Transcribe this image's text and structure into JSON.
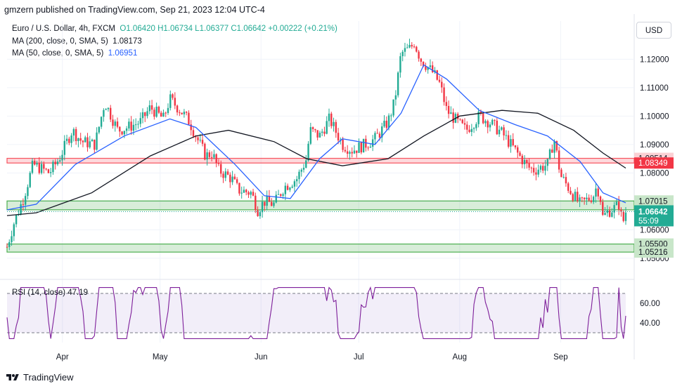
{
  "publisher": "gmzern published on TradingView.com, Sep 21, 2023 12:04 UTC-4",
  "legend": {
    "title": "Euro / U.S. Dollar, 4h, FXCM",
    "ohlc": "O1.06420  H1.06734  L1.06377  C1.06642  +0.00222 (+0.21%)",
    "ma200_label": "MA (200, close, 0, SMA, 5)",
    "ma200_value": "1.08173",
    "ma50_label": "MA (50, close, 0, SMA, 5)",
    "ma50_value": "1.06951"
  },
  "currency_button": "USD",
  "rsi_label": "RSI (14, close)  47.19",
  "footer_brand": "TradingView",
  "colors": {
    "bull": "#22ab94",
    "bear": "#f23645",
    "ma50": "#2962ff",
    "ma200": "#131722",
    "rsi": "#7e1f9a",
    "resistance_zone": "#f7525f",
    "support_zone": "#4caf50"
  },
  "chart_data": [
    {
      "type": "candlestick",
      "symbol": "EURUSD",
      "interval": "4h",
      "x_range": [
        "2023-03-15",
        "2023-09-21"
      ],
      "x_ticks": [
        "Apr",
        "May",
        "Jun",
        "Jul",
        "Aug",
        "Sep"
      ],
      "y_ticks": [
        1.12,
        1.11,
        1.1,
        1.09,
        1.08,
        1.07,
        1.06,
        1.05
      ],
      "ylim": [
        1.0475,
        1.1265
      ],
      "scale_labels": {
        "resistance_top": "1.08514",
        "resistance_bottom": "1.08349",
        "support_top": "1.07015",
        "support_bottom": "1.06703",
        "current_price": "1.06642",
        "countdown": "55:09",
        "lower_top": "1.05500",
        "lower_bottom": "1.05216"
      },
      "zones": [
        {
          "name": "resistance",
          "from": 1.08349,
          "to": 1.08514
        },
        {
          "name": "support",
          "from": 1.06703,
          "to": 1.07015
        },
        {
          "name": "lower support",
          "from": 1.05216,
          "to": 1.055
        }
      ],
      "close_path": [
        [
          "2023-03-15",
          1.054
        ],
        [
          "2023-03-17",
          1.062
        ],
        [
          "2023-03-20",
          1.071
        ],
        [
          "2023-03-23",
          1.083
        ],
        [
          "2023-03-28",
          1.08
        ],
        [
          "2023-03-31",
          1.085
        ],
        [
          "2023-04-04",
          1.095
        ],
        [
          "2023-04-07",
          1.091
        ],
        [
          "2023-04-11",
          1.09
        ],
        [
          "2023-04-14",
          1.105
        ],
        [
          "2023-04-18",
          1.095
        ],
        [
          "2023-04-21",
          1.096
        ],
        [
          "2023-04-25",
          1.098
        ],
        [
          "2023-04-28",
          1.103
        ],
        [
          "2023-05-02",
          1.099
        ],
        [
          "2023-05-04",
          1.106
        ],
        [
          "2023-05-08",
          1.101
        ],
        [
          "2023-05-10",
          1.098
        ],
        [
          "2023-05-12",
          1.093
        ],
        [
          "2023-05-15",
          1.086
        ],
        [
          "2023-05-17",
          1.087
        ],
        [
          "2023-05-19",
          1.081
        ],
        [
          "2023-05-23",
          1.078
        ],
        [
          "2023-05-25",
          1.074
        ],
        [
          "2023-05-29",
          1.073
        ],
        [
          "2023-05-31",
          1.067
        ],
        [
          "2023-06-02",
          1.07
        ],
        [
          "2023-06-05",
          1.069
        ],
        [
          "2023-06-08",
          1.075
        ],
        [
          "2023-06-12",
          1.078
        ],
        [
          "2023-06-15",
          1.085
        ],
        [
          "2023-06-16",
          1.095
        ],
        [
          "2023-06-19",
          1.093
        ],
        [
          "2023-06-22",
          1.099
        ],
        [
          "2023-06-26",
          1.09
        ],
        [
          "2023-06-29",
          1.088
        ],
        [
          "2023-07-03",
          1.09
        ],
        [
          "2023-07-06",
          1.092
        ],
        [
          "2023-07-10",
          1.098
        ],
        [
          "2023-07-12",
          1.105
        ],
        [
          "2023-07-14",
          1.122
        ],
        [
          "2023-07-17",
          1.124
        ],
        [
          "2023-07-18",
          1.126
        ],
        [
          "2023-07-20",
          1.12
        ],
        [
          "2023-07-24",
          1.115
        ],
        [
          "2023-07-26",
          1.111
        ],
        [
          "2023-07-28",
          1.102
        ],
        [
          "2023-08-01",
          1.097
        ],
        [
          "2023-08-03",
          1.095
        ],
        [
          "2023-08-07",
          1.1
        ],
        [
          "2023-08-10",
          1.098
        ],
        [
          "2023-08-14",
          1.094
        ],
        [
          "2023-08-16",
          1.091
        ],
        [
          "2023-08-18",
          1.088
        ],
        [
          "2023-08-22",
          1.082
        ],
        [
          "2023-08-24",
          1.081
        ],
        [
          "2023-08-28",
          1.083
        ],
        [
          "2023-08-30",
          1.092
        ],
        [
          "2023-09-01",
          1.079
        ],
        [
          "2023-09-05",
          1.072
        ],
        [
          "2023-09-07",
          1.069
        ],
        [
          "2023-09-11",
          1.072
        ],
        [
          "2023-09-12",
          1.075
        ],
        [
          "2023-09-13",
          1.073
        ],
        [
          "2023-09-14",
          1.064
        ],
        [
          "2023-09-15",
          1.066
        ],
        [
          "2023-09-18",
          1.068
        ],
        [
          "2023-09-19",
          1.069
        ],
        [
          "2023-09-20",
          1.062
        ],
        [
          "2023-09-21",
          1.0664
        ]
      ],
      "ma50_path": [
        [
          "2023-03-15",
          1.067
        ],
        [
          "2023-03-24",
          1.069
        ],
        [
          "2023-04-05",
          1.083
        ],
        [
          "2023-04-20",
          1.093
        ],
        [
          "2023-05-04",
          1.099
        ],
        [
          "2023-05-12",
          1.096
        ],
        [
          "2023-05-24",
          1.083
        ],
        [
          "2023-06-02",
          1.072
        ],
        [
          "2023-06-10",
          1.071
        ],
        [
          "2023-06-19",
          1.085
        ],
        [
          "2023-06-26",
          1.092
        ],
        [
          "2023-07-06",
          1.09
        ],
        [
          "2023-07-14",
          1.101
        ],
        [
          "2023-07-21",
          1.118
        ],
        [
          "2023-07-28",
          1.113
        ],
        [
          "2023-08-07",
          1.102
        ],
        [
          "2023-08-18",
          1.097
        ],
        [
          "2023-08-28",
          1.093
        ],
        [
          "2023-09-07",
          1.084
        ],
        [
          "2023-09-14",
          1.073
        ],
        [
          "2023-09-21",
          1.0695
        ]
      ],
      "ma200_path": [
        [
          "2023-03-15",
          1.065
        ],
        [
          "2023-03-24",
          1.066
        ],
        [
          "2023-04-10",
          1.073
        ],
        [
          "2023-04-28",
          1.086
        ],
        [
          "2023-05-12",
          1.093
        ],
        [
          "2023-05-22",
          1.095
        ],
        [
          "2023-06-05",
          1.091
        ],
        [
          "2023-06-15",
          1.085
        ],
        [
          "2023-06-26",
          1.0825
        ],
        [
          "2023-07-10",
          1.085
        ],
        [
          "2023-07-21",
          1.093
        ],
        [
          "2023-08-01",
          1.1
        ],
        [
          "2023-08-14",
          1.102
        ],
        [
          "2023-08-25",
          1.101
        ],
        [
          "2023-09-05",
          1.095
        ],
        [
          "2023-09-14",
          1.087
        ],
        [
          "2023-09-21",
          1.0817
        ]
      ]
    },
    {
      "type": "line",
      "title": "RSI (14, close)",
      "last_value": 47.19,
      "y_ticks": [
        60,
        40
      ],
      "ylim": [
        20,
        80
      ],
      "bands": [
        70,
        30
      ],
      "x_range": [
        "2023-03-15",
        "2023-09-21"
      ]
    }
  ]
}
